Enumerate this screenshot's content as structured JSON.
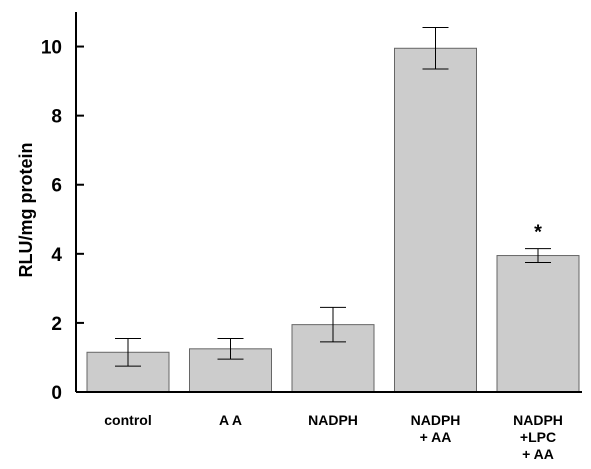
{
  "chart_data": {
    "type": "bar",
    "title": "",
    "xlabel": "",
    "ylabel": "RLU/mg  protein",
    "ylim": [
      0,
      11
    ],
    "yticks": [
      0,
      2,
      4,
      6,
      8,
      10
    ],
    "grid": false,
    "legend": "none",
    "bar_color": "#cccccc",
    "categories": [
      [
        "control"
      ],
      [
        "A A"
      ],
      [
        "NADPH"
      ],
      [
        "NADPH",
        "+ AA"
      ],
      [
        "NADPH",
        "+LPC",
        "+ AA"
      ]
    ],
    "values": [
      1.15,
      1.25,
      1.95,
      9.95,
      3.95
    ],
    "errors": [
      0.4,
      0.3,
      0.5,
      0.6,
      0.2
    ],
    "annotations": [
      "",
      "",
      "",
      "",
      "*"
    ]
  }
}
